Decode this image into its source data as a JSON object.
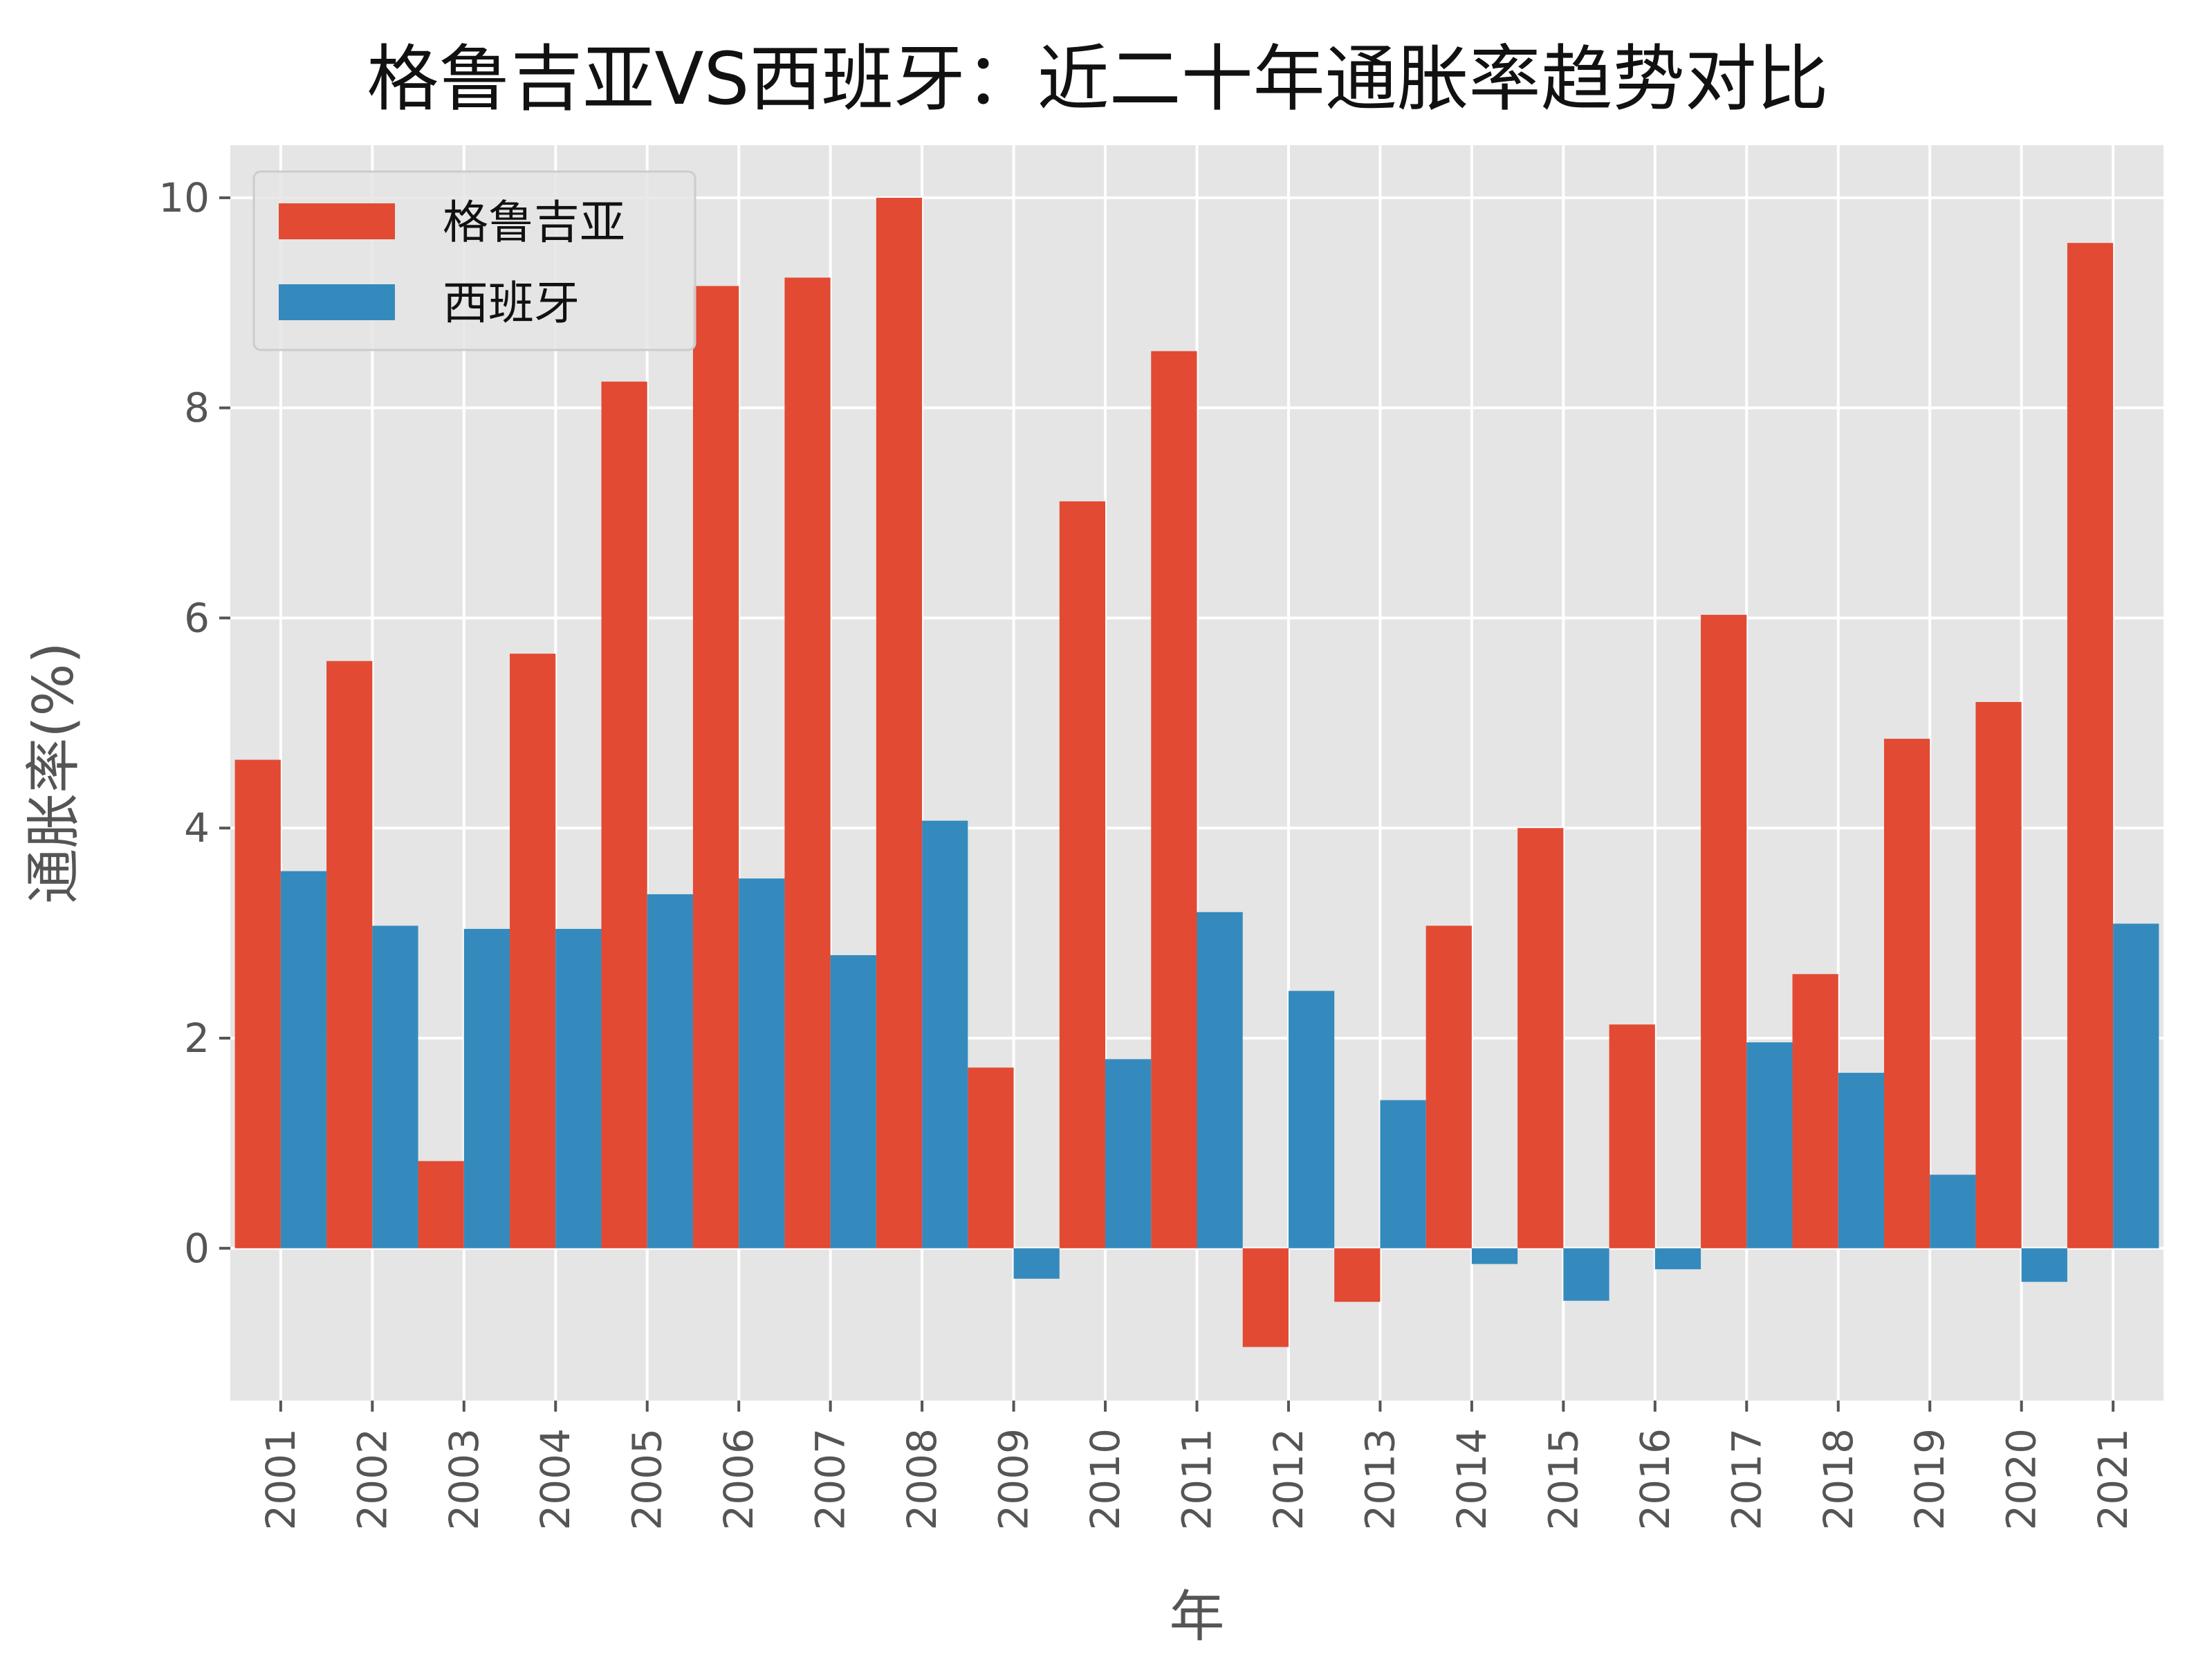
{
  "chart_data": {
    "type": "bar",
    "title": "格鲁吉亚VS西班牙：近二十年通胀率趋势对比",
    "xlabel": "年",
    "ylabel": "通胀率(%)",
    "categories": [
      "2001",
      "2002",
      "2003",
      "2004",
      "2005",
      "2006",
      "2007",
      "2008",
      "2009",
      "2010",
      "2011",
      "2012",
      "2013",
      "2014",
      "2015",
      "2016",
      "2017",
      "2018",
      "2019",
      "2020",
      "2021"
    ],
    "series": [
      {
        "name": "格鲁吉亚",
        "color": "#E24A33",
        "values": [
          4.65,
          5.59,
          0.83,
          5.66,
          8.25,
          9.16,
          9.24,
          10.0,
          1.72,
          7.11,
          8.54,
          -0.94,
          -0.51,
          3.07,
          4.0,
          2.13,
          6.03,
          2.61,
          4.85,
          5.2,
          9.57
        ]
      },
      {
        "name": "西班牙",
        "color": "#348ABD",
        "values": [
          3.59,
          3.07,
          3.04,
          3.04,
          3.37,
          3.52,
          2.79,
          4.07,
          -0.29,
          1.8,
          3.2,
          2.45,
          1.41,
          -0.15,
          -0.5,
          -0.2,
          1.96,
          1.67,
          0.7,
          -0.32,
          3.09
        ]
      }
    ],
    "ylim": [
      -1.45,
      10.5
    ],
    "yticks": [
      0,
      2,
      4,
      6,
      8,
      10
    ],
    "grid": true,
    "legend_position": "top-left",
    "style": "ggplot"
  }
}
